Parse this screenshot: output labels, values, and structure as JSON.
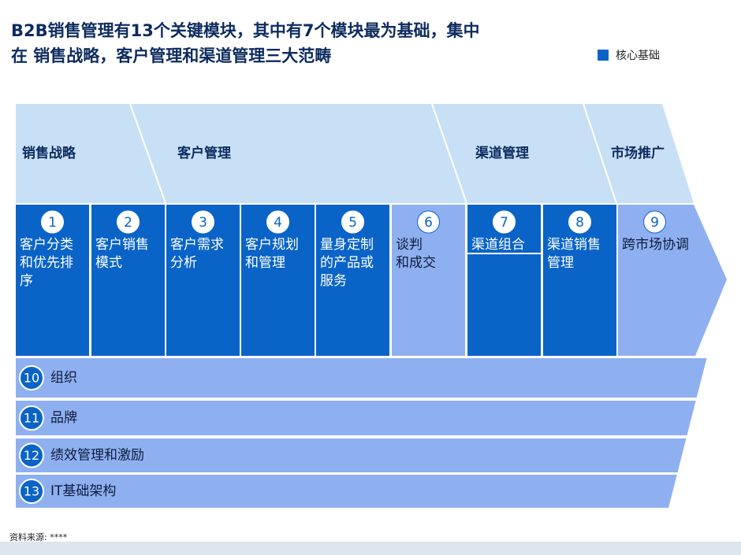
{
  "header": {
    "title": [
      "B2B销售管理有13个关键模块，其中有7个模块最为基础，集中",
      "在 销售战略，客户管理和渠道管理三大范畴"
    ]
  },
  "legend": {
    "label": "核心基础",
    "color": "#0a64c8"
  },
  "categories": [
    "销售战略",
    "客户管理",
    "渠道管理",
    "市场推广"
  ],
  "modules": [
    {
      "number": 1,
      "lines": [
        "客户分类",
        "和优先排",
        "序"
      ],
      "core": true
    },
    {
      "number": 2,
      "lines": [
        "客户销售",
        "模式"
      ],
      "core": true
    },
    {
      "number": 3,
      "lines": [
        "客户需求",
        "分析"
      ],
      "core": true
    },
    {
      "number": 4,
      "lines": [
        "客户规划",
        "和管理"
      ],
      "core": true
    },
    {
      "number": 5,
      "lines": [
        "量身定制",
        "的产品或",
        "服务"
      ],
      "core": true
    },
    {
      "number": 6,
      "lines": [
        "谈判",
        "和成交"
      ],
      "core": false
    },
    {
      "number": 7,
      "lines": [
        "渠道组合"
      ],
      "core": true
    },
    {
      "number": 8,
      "lines": [
        "渠道销售",
        "管理"
      ],
      "core": true
    },
    {
      "number": 9,
      "lines": [
        "跨市场协调"
      ],
      "core": false
    }
  ],
  "foundations": [
    {
      "number": 10,
      "label": "组织"
    },
    {
      "number": 11,
      "label": "品牌"
    },
    {
      "number": 12,
      "label": "绩效管理和激励"
    },
    {
      "number": 13,
      "label": "IT基础架构"
    }
  ],
  "footer": {
    "source": "资料来源: ****"
  }
}
